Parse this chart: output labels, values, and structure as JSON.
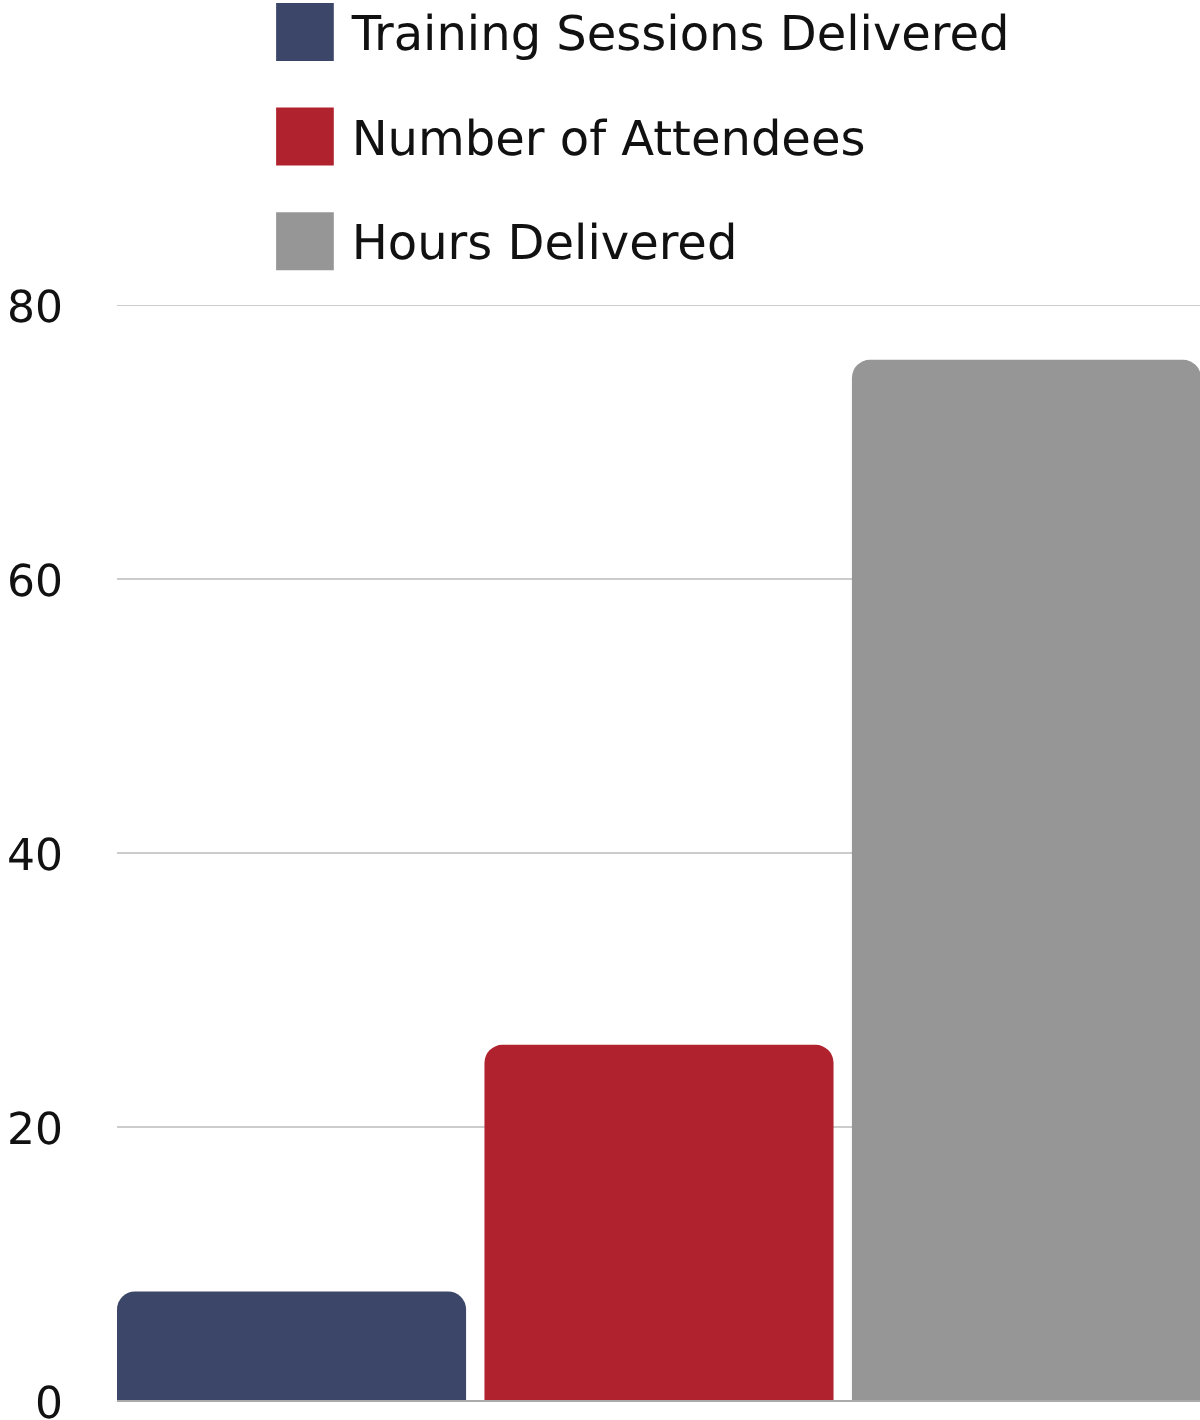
{
  "chart_data": {
    "type": "bar",
    "categories": [
      null
    ],
    "series": [
      {
        "name": "Training Sessions Delivered",
        "color": "#3c4668",
        "values": [
          8
        ]
      },
      {
        "name": "Number of Attendees",
        "color": "#b0232e",
        "values": [
          26
        ]
      },
      {
        "name": "Hours Delivered",
        "color": "#969696",
        "values": [
          76
        ]
      }
    ],
    "ylim": [
      0,
      80
    ],
    "yticks": [
      0,
      20,
      40,
      60,
      80
    ],
    "grid": "y",
    "legend": "top"
  }
}
